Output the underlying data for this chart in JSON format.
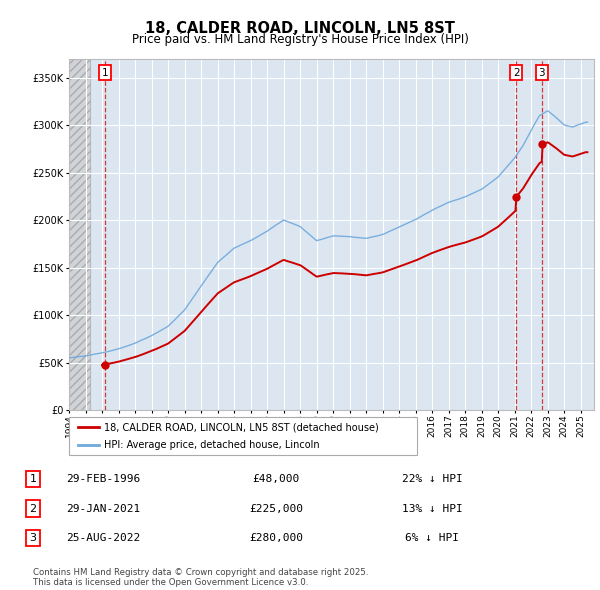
{
  "title": "18, CALDER ROAD, LINCOLN, LN5 8ST",
  "subtitle": "Price paid vs. HM Land Registry's House Price Index (HPI)",
  "sale_dates_str": [
    "29-FEB-1996",
    "29-JAN-2021",
    "25-AUG-2022"
  ],
  "sale_year_nums": [
    1996.165,
    2021.08,
    2022.646
  ],
  "sale_prices": [
    48000,
    225000,
    280000
  ],
  "sale_labels": [
    "1",
    "2",
    "3"
  ],
  "sale_prices_str": [
    "£48,000",
    "£225,000",
    "£280,000"
  ],
  "sale_hpi_notes": [
    "22% ↓ HPI",
    "13% ↓ HPI",
    "6% ↓ HPI"
  ],
  "legend_red": "18, CALDER ROAD, LINCOLN, LN5 8ST (detached house)",
  "legend_blue": "HPI: Average price, detached house, Lincoln",
  "footer": "Contains HM Land Registry data © Crown copyright and database right 2025.\nThis data is licensed under the Open Government Licence v3.0.",
  "hpi_color": "#6fa8dc",
  "price_color": "#cc0000",
  "bg_plot": "#dce6f1",
  "grid_color": "#ffffff",
  "ylim": [
    0,
    370000
  ],
  "xlim_start": 1994.0,
  "xlim_end": 2025.8
}
